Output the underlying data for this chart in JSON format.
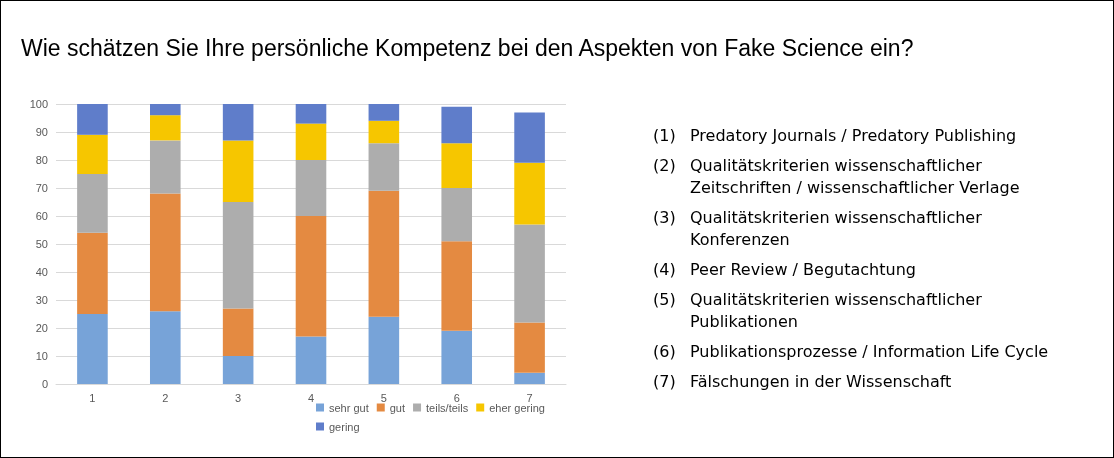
{
  "chart_data": {
    "type": "bar",
    "title": "Wie schätzen Sie Ihre persönliche Kompetenz bei den Aspekten von Fake Science ein?",
    "categories": [
      "1",
      "2",
      "3",
      "4",
      "5",
      "6",
      "7"
    ],
    "stacked": true,
    "series": [
      {
        "name": "sehr gut",
        "color": "#77a3d8",
        "values": [
          25,
          26,
          10,
          17,
          24,
          19,
          4
        ]
      },
      {
        "name": "gut",
        "color": "#e48a41",
        "values": [
          29,
          42,
          17,
          43,
          45,
          32,
          18
        ]
      },
      {
        "name": "teils/teils",
        "color": "#adadad",
        "values": [
          21,
          19,
          38,
          20,
          17,
          19,
          35
        ]
      },
      {
        "name": "eher gering",
        "color": "#f6c600",
        "values": [
          14,
          9,
          22,
          13,
          8,
          16,
          22
        ]
      },
      {
        "name": "gering",
        "color": "#5f7dca",
        "values": [
          11,
          4,
          13,
          7,
          6,
          13,
          18
        ]
      }
    ],
    "ylim": [
      0,
      100
    ],
    "yticks": [
      0,
      10,
      20,
      30,
      40,
      50,
      60,
      70,
      80,
      90,
      100
    ],
    "grid": "y",
    "legend": "bottom",
    "annotations": [
      "(1) Predatory Journals / Predatory Publishing",
      "(2) Qualitätskriterien wissenschaftlicher Zeitschriften / wissenschaftlicher Verlage",
      "(3) Qualitätskriterien wissenschaftlicher Konferenzen",
      "(4) Peer Review / Begutachtung",
      "(5) Qualitätskriterien wissenschaftlicher Publikationen",
      "(6) Publikationsprozesse / Information Life Cycle",
      "(7) Fälschungen in der Wissenschaft"
    ]
  }
}
